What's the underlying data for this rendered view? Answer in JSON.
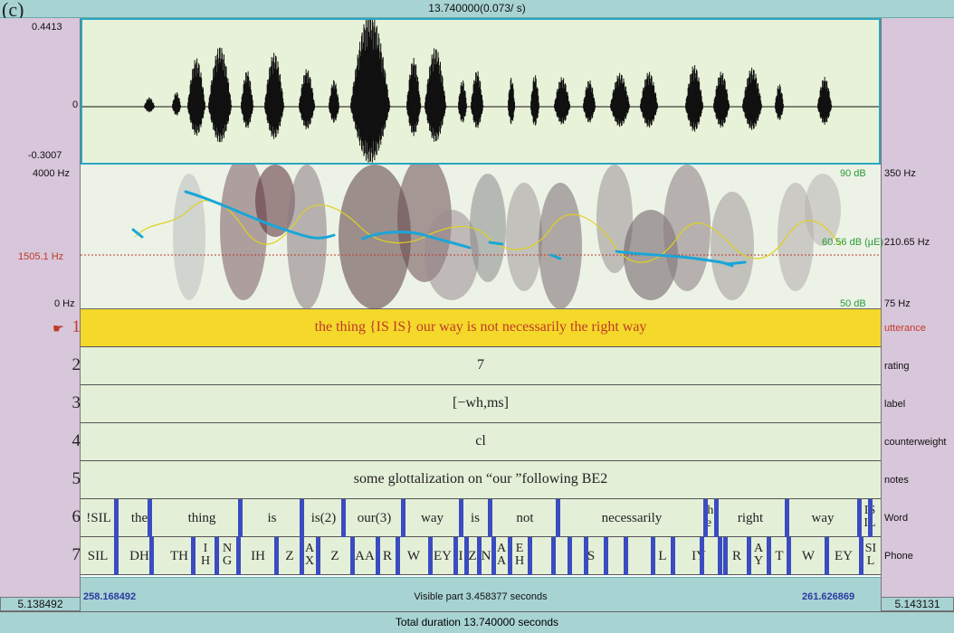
{
  "header": {
    "corner_label": "(c)",
    "title": "13.740000(0.073/ s)"
  },
  "waveform": {
    "max_label": "0.4413",
    "zero_label": "0",
    "min_label": "-0.3007"
  },
  "spectrogram": {
    "freq_top": "4000 Hz",
    "cursor_freq": "1505.1 Hz",
    "freq_bottom": "0 Hz",
    "db_top": "90 dB",
    "db_mid": "60.56 dB (µE)",
    "db_bottom": "50 dB",
    "pitch_top": "350 Hz",
    "pitch_mid": "210.65 Hz",
    "pitch_bottom": "75 Hz",
    "colors": {
      "pitch": "#1aa6d8",
      "formant": "#e0d020",
      "cursor": "#c0392b"
    }
  },
  "tiers": [
    {
      "number": "1",
      "name": "utterance",
      "text": "the thing {IS IS} our way is not necessarily the right way"
    },
    {
      "number": "2",
      "name": "rating",
      "text": "7"
    },
    {
      "number": "3",
      "name": "label",
      "text": "[−wh,ms]"
    },
    {
      "number": "4",
      "name": "counterweight",
      "text": "cl"
    },
    {
      "number": "5",
      "name": "notes",
      "text": "some glottalization on “our ”following BE2"
    },
    {
      "number": "6",
      "name": "Word"
    },
    {
      "number": "7",
      "name": "Phone"
    }
  ],
  "words": [
    "!SIL",
    "the",
    "thing",
    "is",
    "is(2)",
    "our(3)",
    "way",
    "is",
    "not",
    "necessarily",
    "th\ne",
    "right",
    "way",
    "IS\nIL"
  ],
  "phones": [
    "SIL",
    "DH",
    "TH",
    "I\nH",
    "N\nG",
    "IH",
    "Z",
    "A\nX",
    "Z",
    "AA",
    "R",
    "W",
    "EY",
    "I",
    "Z",
    "N",
    "A\nA",
    "E\nH",
    "S",
    "L",
    "IY",
    "R",
    "A\nY",
    "T",
    "W",
    "EY",
    "SI\nL"
  ],
  "footer_panel": {
    "left_time": "258.168492",
    "visible_label": "Visible part 3.458377 seconds",
    "right_time": "261.626869"
  },
  "side_times": {
    "left": "5.138492",
    "right": "5.143131"
  },
  "footer": {
    "total_label": "Total duration 13.740000 seconds"
  },
  "pointer_icon": "hand-pointer-icon"
}
